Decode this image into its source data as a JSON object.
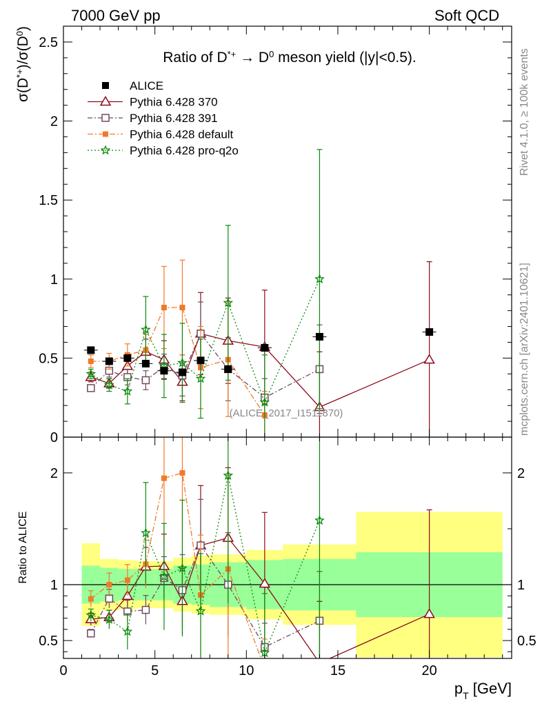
{
  "header": {
    "left": "7000 GeV pp",
    "right": "Soft QCD"
  },
  "side_labels": {
    "version": "Rivet 4.1.0, ≥ 100k events",
    "source": "mcplots.cern.ch [arXiv:2401.10621]"
  },
  "chart_data": {
    "type": "scatter",
    "title_parts": [
      "Ratio of D",
      "*+",
      " → D",
      "0",
      " meson yield (|y|<0.5)."
    ],
    "analysis_tag": "(ALICE_2017_I1511870)",
    "xlabel_main": "p",
    "xlabel_sub": "T",
    "xlabel_unit": " [GeV]",
    "ylabel_parts": [
      "σ(D",
      "*+",
      ")/σ(D",
      "0",
      ")"
    ],
    "ratio_ylabel": "Ratio to ALICE",
    "xlim": [
      0,
      24.5
    ],
    "ylim_main": [
      0,
      2.6
    ],
    "ylim_ratio": [
      0.34,
      2.32
    ],
    "x_ticks": [
      "0",
      "5",
      "10",
      "15",
      "20"
    ],
    "y_ticks_main": [
      "0",
      "0.5",
      "1",
      "1.5",
      "2",
      "2.5"
    ],
    "y_ticks_ratio": [
      "0.5",
      "1",
      "2"
    ],
    "x": [
      1.5,
      2.5,
      3.5,
      4.5,
      5.5,
      6.5,
      7.5,
      9,
      11,
      14,
      20
    ],
    "bin_edges": [
      1,
      2,
      3,
      4,
      5,
      6,
      7,
      8,
      10,
      12,
      16,
      24
    ],
    "data": {
      "name": "ALICE",
      "values": [
        0.55,
        0.48,
        0.5,
        0.465,
        0.42,
        0.41,
        0.485,
        0.43,
        0.565,
        0.635,
        0.665
      ],
      "band_stat": [
        0.17,
        0.15,
        0.14,
        0.14,
        0.14,
        0.17,
        0.18,
        0.2,
        0.22,
        0.23,
        0.29
      ],
      "band_total": [
        0.37,
        0.23,
        0.22,
        0.21,
        0.21,
        0.24,
        0.26,
        0.27,
        0.31,
        0.36,
        0.65
      ]
    },
    "series": [
      {
        "name": "Pythia 6.428 370",
        "color": "#8b0a1a",
        "marker": "triangle-open",
        "dash": "",
        "values": [
          0.38,
          0.34,
          0.45,
          0.54,
          0.49,
          0.35,
          0.655,
          0.61,
          0.57,
          0.19,
          0.49
        ],
        "errors": [
          0.03,
          0.03,
          0.06,
          0.08,
          0.12,
          0.12,
          0.26,
          0.27,
          0.36,
          0.35,
          0.62
        ]
      },
      {
        "name": "Pythia 6.428 391",
        "color": "#6e4a5e",
        "marker": "square-open",
        "dash": "7,3,2,3",
        "values": [
          0.31,
          0.42,
          0.38,
          0.36,
          0.445,
          0.39,
          0.655,
          0.43,
          0.25,
          0.43,
          null
        ],
        "errors": [
          0.02,
          0.04,
          0.05,
          0.06,
          0.08,
          0.13,
          0.2,
          0.2,
          0.12,
          0.28,
          0
        ]
      },
      {
        "name": "Pythia 6.428 default",
        "color": "#f07a2a",
        "marker": "square-filled",
        "dash": "8,3,2,3",
        "values": [
          0.48,
          0.48,
          0.52,
          0.55,
          0.82,
          0.82,
          0.44,
          0.49,
          0.14,
          null,
          null
        ],
        "errors": [
          0.04,
          0.05,
          0.07,
          0.1,
          0.26,
          0.3,
          0.26,
          0.36,
          0.15,
          0,
          0
        ]
      },
      {
        "name": "Pythia 6.428 pro-q2o",
        "color": "#0a8a0a",
        "marker": "star",
        "dash": "2,3",
        "values": [
          0.4,
          0.33,
          0.29,
          0.68,
          0.45,
          0.47,
          0.37,
          0.85,
          0.22,
          1.0,
          null
        ],
        "errors": [
          0.03,
          0.04,
          0.08,
          0.21,
          0.2,
          0.25,
          0.25,
          0.49,
          0.3,
          0.82,
          0
        ]
      }
    ]
  }
}
